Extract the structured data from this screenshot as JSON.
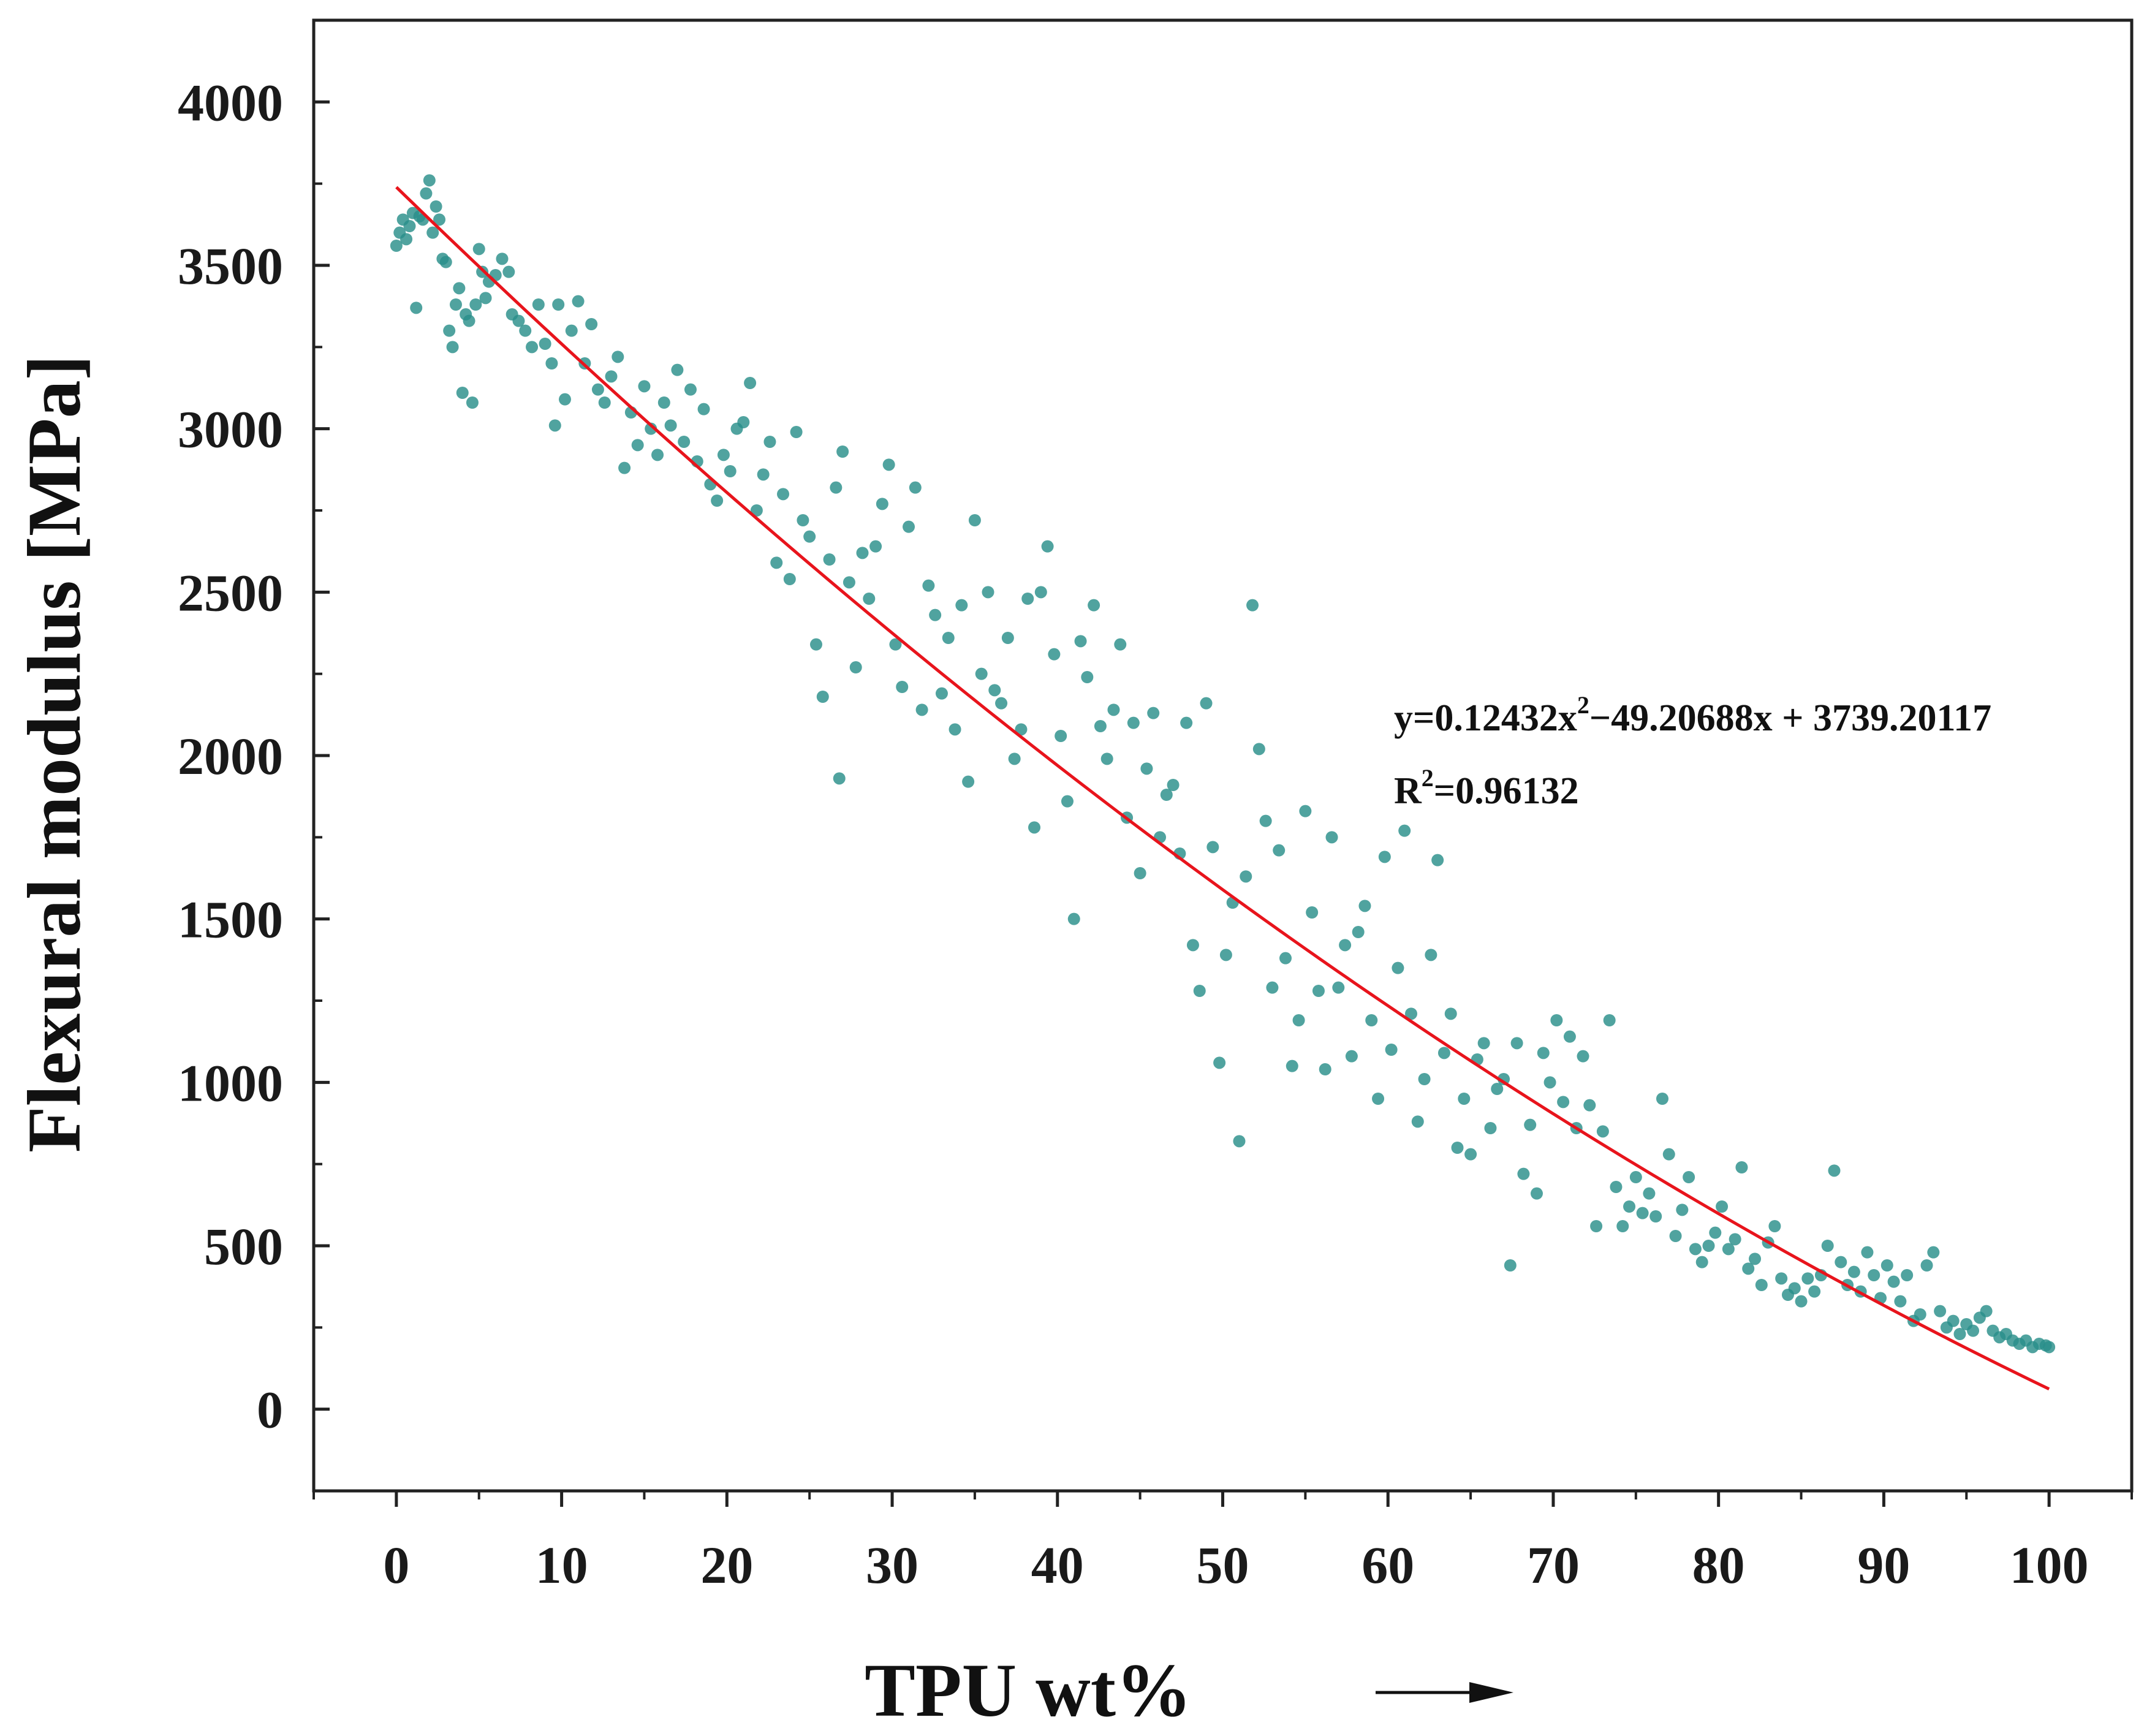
{
  "chart_data": {
    "type": "scatter",
    "title": "",
    "xlabel": "TPU wt%",
    "ylabel": "Flexural modulus [MPa]",
    "xlim": [
      -5,
      105
    ],
    "ylim": [
      -250,
      4250
    ],
    "x_ticks": [
      0,
      10,
      20,
      30,
      40,
      50,
      60,
      70,
      80,
      90,
      100
    ],
    "y_ticks": [
      0,
      500,
      1000,
      1500,
      2000,
      2500,
      3000,
      3500,
      4000
    ],
    "x_tick_labels": [
      "0",
      "10",
      "20",
      "30",
      "40",
      "50",
      "60",
      "70",
      "80",
      "90",
      "100"
    ],
    "y_tick_labels": [
      "0",
      "500",
      "1000",
      "1500",
      "2000",
      "2500",
      "3000",
      "3500",
      "4000"
    ],
    "grid": false,
    "colors": {
      "points": "#2a8f8a",
      "fit": "#e8141c",
      "axis": "#222222"
    },
    "fit": {
      "type": "quadratic",
      "a": 0.12432,
      "b": -49.20688,
      "c": 3739.20117,
      "x_range": [
        0,
        100
      ],
      "equation_prefix": "y=0.12432x",
      "equation_suffix": "−49.20688x + 3739.20117",
      "r2_prefix": "R",
      "r2_suffix": "=0.96132",
      "sup": "2"
    },
    "series": [
      {
        "name": "Flexural modulus",
        "points": [
          [
            0.0,
            3560
          ],
          [
            0.2,
            3600
          ],
          [
            0.4,
            3640
          ],
          [
            0.6,
            3580
          ],
          [
            0.8,
            3620
          ],
          [
            1.0,
            3660
          ],
          [
            1.2,
            3370
          ],
          [
            1.4,
            3650
          ],
          [
            1.6,
            3640
          ],
          [
            1.8,
            3720
          ],
          [
            2.0,
            3760
          ],
          [
            2.2,
            3600
          ],
          [
            2.4,
            3680
          ],
          [
            2.6,
            3640
          ],
          [
            2.8,
            3520
          ],
          [
            3.0,
            3510
          ],
          [
            3.2,
            3300
          ],
          [
            3.4,
            3250
          ],
          [
            3.6,
            3380
          ],
          [
            3.8,
            3430
          ],
          [
            4.0,
            3110
          ],
          [
            4.2,
            3350
          ],
          [
            4.4,
            3330
          ],
          [
            4.6,
            3080
          ],
          [
            4.8,
            3380
          ],
          [
            5.0,
            3550
          ],
          [
            5.2,
            3480
          ],
          [
            5.4,
            3400
          ],
          [
            5.6,
            3450
          ],
          [
            6.0,
            3470
          ],
          [
            6.4,
            3520
          ],
          [
            6.8,
            3480
          ],
          [
            7.0,
            3350
          ],
          [
            7.4,
            3330
          ],
          [
            7.8,
            3300
          ],
          [
            8.2,
            3250
          ],
          [
            8.6,
            3380
          ],
          [
            9.0,
            3260
          ],
          [
            9.4,
            3200
          ],
          [
            9.6,
            3010
          ],
          [
            9.8,
            3380
          ],
          [
            10.2,
            3090
          ],
          [
            10.6,
            3300
          ],
          [
            11.0,
            3390
          ],
          [
            11.4,
            3200
          ],
          [
            11.8,
            3320
          ],
          [
            12.2,
            3120
          ],
          [
            12.6,
            3080
          ],
          [
            13.0,
            3160
          ],
          [
            13.4,
            3220
          ],
          [
            13.8,
            2880
          ],
          [
            14.2,
            3050
          ],
          [
            14.6,
            2950
          ],
          [
            15.0,
            3130
          ],
          [
            15.4,
            3000
          ],
          [
            15.8,
            2920
          ],
          [
            16.2,
            3080
          ],
          [
            16.6,
            3010
          ],
          [
            17.0,
            3180
          ],
          [
            17.4,
            2960
          ],
          [
            17.8,
            3120
          ],
          [
            18.2,
            2900
          ],
          [
            18.6,
            3060
          ],
          [
            19.0,
            2830
          ],
          [
            19.4,
            2780
          ],
          [
            19.8,
            2920
          ],
          [
            20.2,
            2870
          ],
          [
            20.6,
            3000
          ],
          [
            21.0,
            3020
          ],
          [
            21.4,
            3140
          ],
          [
            21.8,
            2750
          ],
          [
            22.2,
            2860
          ],
          [
            22.6,
            2960
          ],
          [
            23.0,
            2590
          ],
          [
            23.4,
            2800
          ],
          [
            23.8,
            2540
          ],
          [
            24.2,
            2990
          ],
          [
            24.6,
            2720
          ],
          [
            25.0,
            2670
          ],
          [
            25.4,
            2340
          ],
          [
            25.8,
            2180
          ],
          [
            26.2,
            2600
          ],
          [
            26.6,
            2820
          ],
          [
            26.8,
            1930
          ],
          [
            27.0,
            2930
          ],
          [
            27.4,
            2530
          ],
          [
            27.8,
            2270
          ],
          [
            28.2,
            2620
          ],
          [
            28.6,
            2480
          ],
          [
            29.0,
            2640
          ],
          [
            29.4,
            2770
          ],
          [
            29.8,
            2890
          ],
          [
            30.2,
            2340
          ],
          [
            30.6,
            2210
          ],
          [
            31.0,
            2700
          ],
          [
            31.4,
            2820
          ],
          [
            31.8,
            2140
          ],
          [
            32.2,
            2520
          ],
          [
            32.6,
            2430
          ],
          [
            33.0,
            2190
          ],
          [
            33.4,
            2360
          ],
          [
            33.8,
            2080
          ],
          [
            34.2,
            2460
          ],
          [
            34.6,
            1920
          ],
          [
            35.0,
            2720
          ],
          [
            35.4,
            2250
          ],
          [
            35.8,
            2500
          ],
          [
            36.2,
            2200
          ],
          [
            36.6,
            2160
          ],
          [
            37.0,
            2360
          ],
          [
            37.4,
            1990
          ],
          [
            37.8,
            2080
          ],
          [
            38.2,
            2480
          ],
          [
            38.6,
            1780
          ],
          [
            39.0,
            2500
          ],
          [
            39.4,
            2640
          ],
          [
            39.8,
            2310
          ],
          [
            40.2,
            2060
          ],
          [
            40.6,
            1860
          ],
          [
            41.0,
            1500
          ],
          [
            41.4,
            2350
          ],
          [
            41.8,
            2240
          ],
          [
            42.2,
            2460
          ],
          [
            42.6,
            2090
          ],
          [
            43.0,
            1990
          ],
          [
            43.4,
            2140
          ],
          [
            43.8,
            2340
          ],
          [
            44.2,
            1810
          ],
          [
            44.6,
            2100
          ],
          [
            45.0,
            1640
          ],
          [
            45.4,
            1960
          ],
          [
            45.8,
            2130
          ],
          [
            46.2,
            1750
          ],
          [
            46.6,
            1880
          ],
          [
            47.0,
            1910
          ],
          [
            47.4,
            1700
          ],
          [
            47.8,
            2100
          ],
          [
            48.2,
            1420
          ],
          [
            48.6,
            1280
          ],
          [
            49.0,
            2160
          ],
          [
            49.4,
            1720
          ],
          [
            49.8,
            1060
          ],
          [
            50.2,
            1390
          ],
          [
            50.6,
            1550
          ],
          [
            51.0,
            820
          ],
          [
            51.4,
            1630
          ],
          [
            51.8,
            2460
          ],
          [
            52.2,
            2020
          ],
          [
            52.6,
            1800
          ],
          [
            53.0,
            1290
          ],
          [
            53.4,
            1710
          ],
          [
            53.8,
            1380
          ],
          [
            54.2,
            1050
          ],
          [
            54.6,
            1190
          ],
          [
            55.0,
            1830
          ],
          [
            55.4,
            1520
          ],
          [
            55.8,
            1280
          ],
          [
            56.2,
            1040
          ],
          [
            56.6,
            1750
          ],
          [
            57.0,
            1290
          ],
          [
            57.4,
            1420
          ],
          [
            57.8,
            1080
          ],
          [
            58.2,
            1460
          ],
          [
            58.6,
            1540
          ],
          [
            59.0,
            1190
          ],
          [
            59.4,
            950
          ],
          [
            59.8,
            1690
          ],
          [
            60.2,
            1100
          ],
          [
            60.6,
            1350
          ],
          [
            61.0,
            1770
          ],
          [
            61.4,
            1210
          ],
          [
            61.8,
            880
          ],
          [
            62.2,
            1010
          ],
          [
            62.6,
            1390
          ],
          [
            63.0,
            1680
          ],
          [
            63.4,
            1090
          ],
          [
            63.8,
            1210
          ],
          [
            64.2,
            800
          ],
          [
            64.6,
            950
          ],
          [
            65.0,
            780
          ],
          [
            65.4,
            1070
          ],
          [
            65.8,
            1120
          ],
          [
            66.2,
            860
          ],
          [
            66.6,
            980
          ],
          [
            67.0,
            1010
          ],
          [
            67.4,
            440
          ],
          [
            67.8,
            1120
          ],
          [
            68.2,
            720
          ],
          [
            68.6,
            870
          ],
          [
            69.0,
            660
          ],
          [
            69.4,
            1090
          ],
          [
            69.8,
            1000
          ],
          [
            70.2,
            1190
          ],
          [
            70.6,
            940
          ],
          [
            71.0,
            1140
          ],
          [
            71.4,
            860
          ],
          [
            71.8,
            1080
          ],
          [
            72.2,
            930
          ],
          [
            72.6,
            560
          ],
          [
            73.0,
            850
          ],
          [
            73.4,
            1190
          ],
          [
            73.8,
            680
          ],
          [
            74.2,
            560
          ],
          [
            74.6,
            620
          ],
          [
            75.0,
            710
          ],
          [
            75.4,
            600
          ],
          [
            75.8,
            660
          ],
          [
            76.2,
            590
          ],
          [
            76.6,
            950
          ],
          [
            77.0,
            780
          ],
          [
            77.4,
            530
          ],
          [
            77.8,
            610
          ],
          [
            78.2,
            710
          ],
          [
            78.6,
            490
          ],
          [
            79.0,
            450
          ],
          [
            79.4,
            500
          ],
          [
            79.8,
            540
          ],
          [
            80.2,
            620
          ],
          [
            80.6,
            490
          ],
          [
            81.0,
            520
          ],
          [
            81.4,
            740
          ],
          [
            81.8,
            430
          ],
          [
            82.2,
            460
          ],
          [
            82.6,
            380
          ],
          [
            83.0,
            510
          ],
          [
            83.4,
            560
          ],
          [
            83.8,
            400
          ],
          [
            84.2,
            350
          ],
          [
            84.6,
            370
          ],
          [
            85.0,
            330
          ],
          [
            85.4,
            400
          ],
          [
            85.8,
            360
          ],
          [
            86.2,
            410
          ],
          [
            86.6,
            500
          ],
          [
            87.0,
            730
          ],
          [
            87.4,
            450
          ],
          [
            87.8,
            380
          ],
          [
            88.2,
            420
          ],
          [
            88.6,
            360
          ],
          [
            89.0,
            480
          ],
          [
            89.4,
            410
          ],
          [
            89.8,
            340
          ],
          [
            90.2,
            440
          ],
          [
            90.6,
            390
          ],
          [
            91.0,
            330
          ],
          [
            91.4,
            410
          ],
          [
            91.8,
            270
          ],
          [
            92.2,
            290
          ],
          [
            92.6,
            440
          ],
          [
            93.0,
            480
          ],
          [
            93.4,
            300
          ],
          [
            93.8,
            250
          ],
          [
            94.2,
            270
          ],
          [
            94.6,
            230
          ],
          [
            95.0,
            260
          ],
          [
            95.4,
            240
          ],
          [
            95.8,
            280
          ],
          [
            96.2,
            300
          ],
          [
            96.6,
            240
          ],
          [
            97.0,
            220
          ],
          [
            97.4,
            230
          ],
          [
            97.8,
            210
          ],
          [
            98.2,
            200
          ],
          [
            98.6,
            210
          ],
          [
            99.0,
            190
          ],
          [
            99.4,
            200
          ],
          [
            99.8,
            195
          ],
          [
            100.0,
            190
          ]
        ]
      }
    ]
  }
}
